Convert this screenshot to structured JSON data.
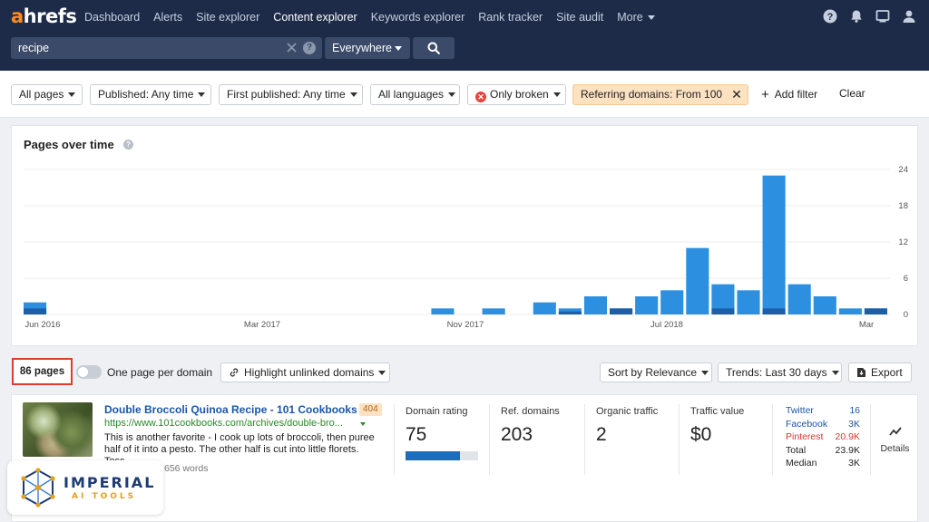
{
  "header": {
    "logo": {
      "a": "a",
      "rest": "hrefs"
    },
    "nav": [
      {
        "label": "Dashboard",
        "active": false
      },
      {
        "label": "Alerts",
        "active": false
      },
      {
        "label": "Site explorer",
        "active": false
      },
      {
        "label": "Content explorer",
        "active": true
      },
      {
        "label": "Keywords explorer",
        "active": false
      },
      {
        "label": "Rank tracker",
        "active": false
      },
      {
        "label": "Site audit",
        "active": false
      },
      {
        "label": "More",
        "active": false
      }
    ],
    "icons": [
      "help-icon",
      "bell-icon",
      "monitor-icon",
      "user-icon"
    ],
    "search": {
      "value": "recipe",
      "scope": "Everywhere"
    },
    "colors": {
      "bg": "#1d2b48",
      "accent": "#ff8a1f"
    }
  },
  "filters": {
    "all_pages": "All pages",
    "published": "Published: Any time",
    "first_published": "First published: Any time",
    "languages": "All languages",
    "broken": "Only broken",
    "ref_domains": "Referring domains: From 100",
    "add_filter": "Add filter",
    "clear": "Clear"
  },
  "chart": {
    "title": "Pages over time"
  },
  "chart_data": {
    "type": "bar",
    "title": "Pages over time",
    "x_tick_labels": [
      "Jun 2016",
      "Mar 2017",
      "Nov 2017",
      "Jul 2018",
      "Mar"
    ],
    "y_tick_labels": [
      "24",
      "18",
      "12",
      "6",
      "0"
    ],
    "ylim": [
      0,
      24
    ],
    "y_axis_position": "right",
    "grid": true,
    "series": [
      {
        "name": "",
        "color": "#2c8fdf",
        "values": [
          2,
          0,
          0,
          0,
          0,
          0,
          0,
          0,
          0,
          0,
          0,
          0,
          0,
          0,
          0,
          0,
          1,
          0,
          1,
          0,
          2,
          1,
          3,
          1,
          3,
          4,
          11,
          5,
          4,
          23,
          5,
          3,
          1,
          1
        ]
      },
      {
        "name": "",
        "color": "#1c5ea8",
        "values": [
          1,
          0,
          0,
          0,
          0,
          0,
          0,
          0,
          0,
          0,
          0,
          0,
          0,
          0,
          0,
          0,
          0,
          0,
          0,
          0,
          0,
          0.5,
          0,
          1,
          0,
          0,
          0,
          1,
          0,
          1,
          0,
          0,
          0,
          1
        ]
      }
    ]
  },
  "results": {
    "count": "86 pages",
    "one_per_domain": "One page per domain",
    "highlight": "Highlight unlinked domains",
    "sort": "Sort by Relevance",
    "trends": "Trends: Last 30 days",
    "export": "Export"
  },
  "result": {
    "title": "Double Broccoli Quinoa Recipe - 101 Cookbooks",
    "status": "404",
    "url": "https://www.101cookbooks.com/archives/double-bro...",
    "snippet": "This is another favorite - I cook up lots of broccoli, then puree half of it into a pesto. The other half is cut into little florets. Toss",
    "words": "656 words",
    "metrics": [
      {
        "label": "Domain rating",
        "value": "75"
      },
      {
        "label": "Ref. domains",
        "value": "203"
      },
      {
        "label": "Organic traffic",
        "value": "2"
      },
      {
        "label": "Traffic value",
        "value": "$0"
      }
    ],
    "domain_rating_fill": 0.75,
    "social": [
      {
        "name": "Twitter",
        "value": "16",
        "color": "#1a56a8"
      },
      {
        "name": "Facebook",
        "value": "3K",
        "color": "#1a56a8"
      },
      {
        "name": "Pinterest",
        "value": "20.9K",
        "color": "#d9362b"
      },
      {
        "name": "Total",
        "value": "23.9K",
        "color": "#222222"
      },
      {
        "name": "Median",
        "value": "3K",
        "color": "#222222"
      }
    ],
    "details": "Details"
  },
  "watermark": {
    "name": "IMPERIAL",
    "sub": "AI TOOLS"
  }
}
